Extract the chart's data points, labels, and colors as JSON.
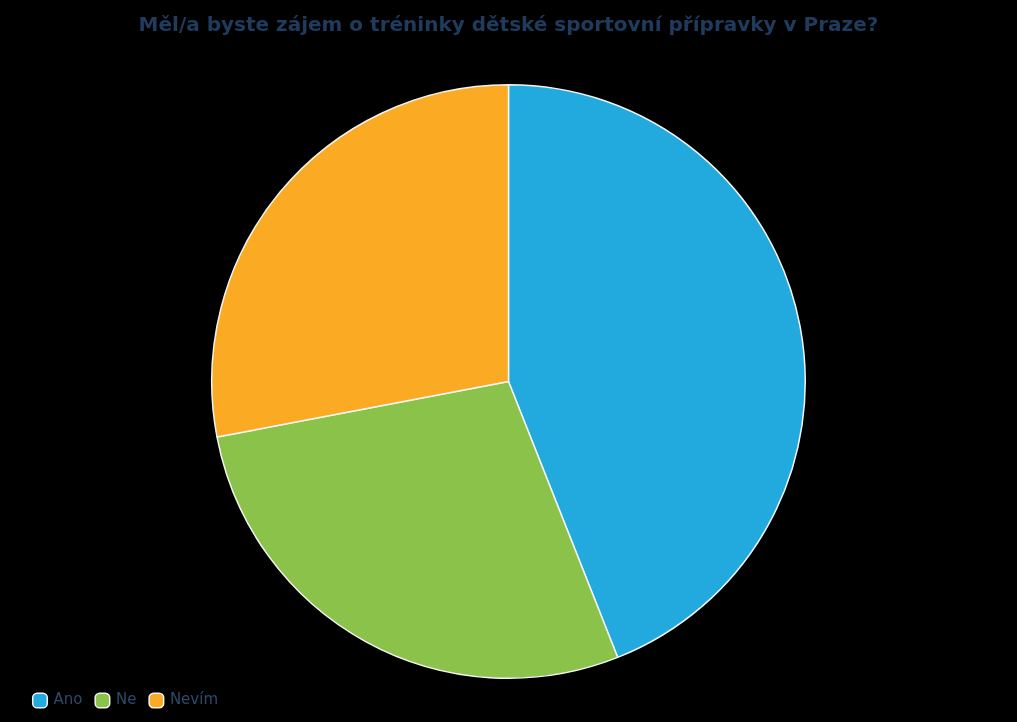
{
  "chart_data": {
    "type": "pie",
    "title": "Měl/a byste zájem o tréninky dětské sportovní přípravky v Praze?",
    "categories": [
      "Ano",
      "Ne",
      "Nevím"
    ],
    "values": [
      44,
      28,
      28
    ],
    "colors": [
      "#22aadf",
      "#8bc34a",
      "#fbaa24"
    ],
    "legend": "bottom left"
  }
}
